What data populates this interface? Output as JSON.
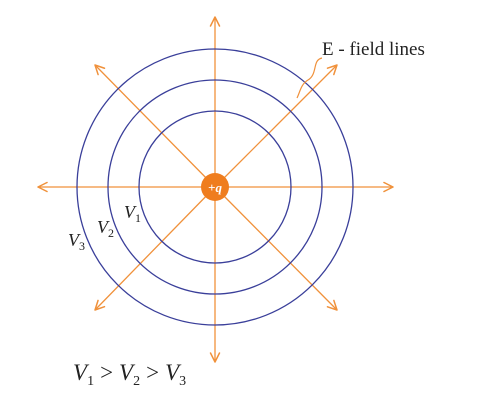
{
  "diagram": {
    "colors": {
      "field_line": "#f0913b",
      "equipotential": "#3a3f9a",
      "charge_fill": "#ef7d1e",
      "text": "#222222"
    },
    "charge": {
      "label": "+q"
    },
    "field_lines_label": "E - field lines",
    "equipotentials": [
      {
        "symbol": "V",
        "subscript": "1"
      },
      {
        "symbol": "V",
        "subscript": "2"
      },
      {
        "symbol": "V",
        "subscript": "3"
      }
    ],
    "relation": [
      {
        "symbol": "V",
        "subscript": "1"
      },
      {
        "operator": ">"
      },
      {
        "symbol": "V",
        "subscript": "2"
      },
      {
        "operator": ">"
      },
      {
        "symbol": "V",
        "subscript": "3"
      }
    ]
  }
}
